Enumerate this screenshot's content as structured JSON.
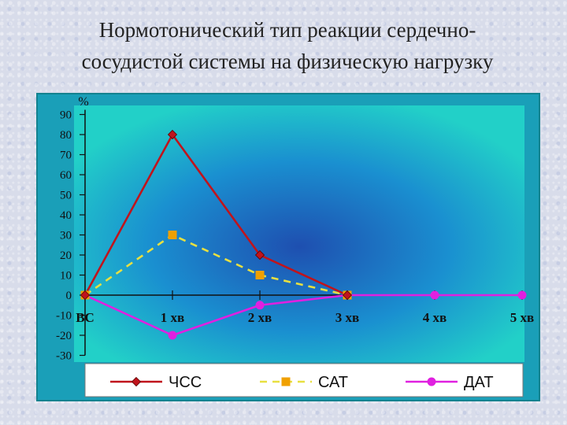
{
  "title_line1": "Нормотонический тип реакции сердечно-",
  "title_line2": "сосудистой системы на  физическую нагрузку",
  "chart_data": {
    "type": "line",
    "ylabel": "%",
    "ylim": [
      -30,
      90
    ],
    "yticks": [
      -30,
      -20,
      -10,
      0,
      10,
      20,
      30,
      40,
      50,
      60,
      70,
      80,
      90
    ],
    "categories": [
      "ВС",
      "1 хв",
      "2 хв",
      "3 хв",
      "4 хв",
      "5 хв"
    ],
    "grid": false,
    "legend_position": "bottom",
    "series": [
      {
        "name": "ЧСС",
        "values": [
          0,
          80,
          20,
          0,
          null,
          null
        ],
        "color": "#c0141c",
        "marker": "diamond",
        "dash": "solid"
      },
      {
        "name": "САТ",
        "values": [
          0,
          30,
          10,
          0,
          null,
          null
        ],
        "color": "#f0a000",
        "marker": "square",
        "dash": "dashed",
        "line_color": "#e8e040"
      },
      {
        "name": "ДАТ",
        "values": [
          0,
          -20,
          -5,
          0,
          0,
          0
        ],
        "color": "#e020e0",
        "marker": "circle",
        "dash": "solid"
      }
    ]
  }
}
